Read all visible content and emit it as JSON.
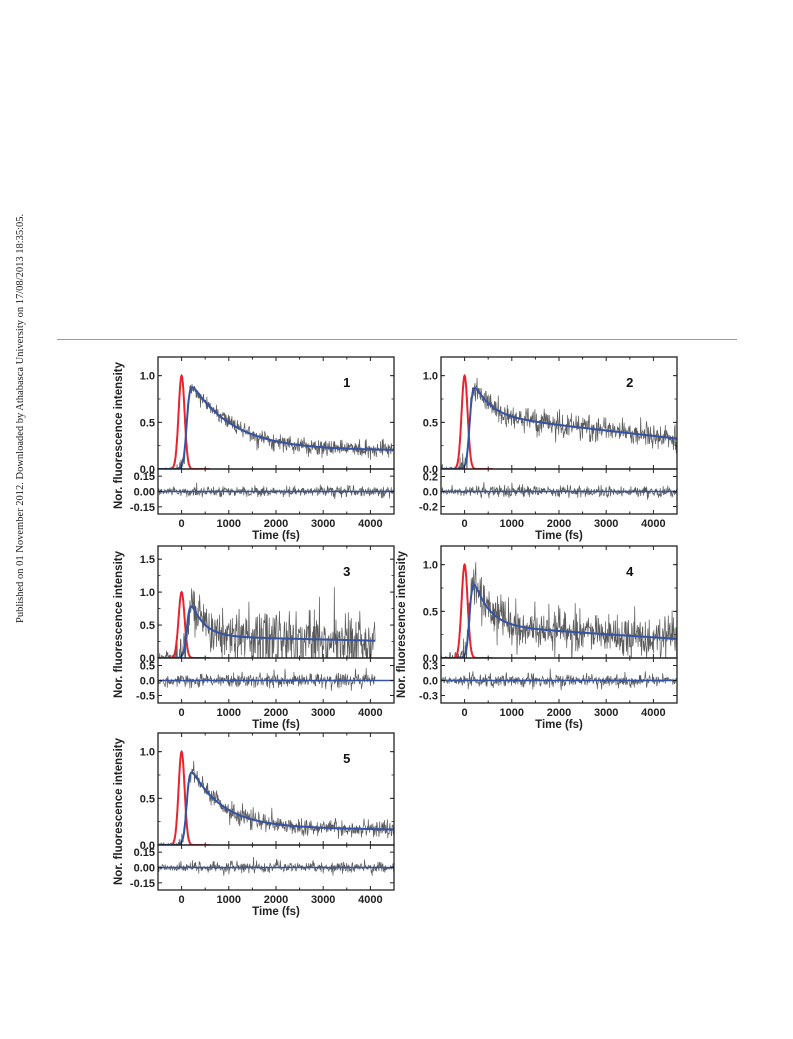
{
  "side_note": "Published on 01 November 2012. Downloaded by Athabasca University on 17/08/2013 18:35:05.",
  "colors": {
    "irf": "#e3262e",
    "fit": "#3553a6",
    "data": "#5a5a5a",
    "axis": "#222222"
  },
  "chart_data": [
    {
      "type": "line",
      "panel_label": "1",
      "xlabel": "Time (fs)",
      "ylabel": "Nor. fluorescence intensity",
      "xlim": [
        -500,
        4500
      ],
      "xticks": [
        0,
        1000,
        2000,
        3000,
        4000
      ],
      "ylim": [
        0,
        1.2
      ],
      "yticks": [
        0.0,
        0.5,
        1.0
      ],
      "ytick_labels": [
        "0.0",
        "0.5",
        "1.0"
      ],
      "residual_ylim": [
        -0.22,
        0.22
      ],
      "residual_ticks": [
        0.15,
        0.0,
        -0.15
      ],
      "residual_tick_labels": [
        "0.15",
        "0.00",
        "-0.15"
      ],
      "irf": {
        "center": 0,
        "fwhm": 150
      },
      "fit": {
        "rise_center": 110,
        "rise_width": 80,
        "tau": 900,
        "amplitude": 0.8,
        "offset": 0.2
      },
      "data_end": 4500,
      "noise": 0.05,
      "residual_noise": 0.05,
      "series": [
        {
          "name": "",
          "color": "#e3262e"
        },
        {
          "name": "",
          "color": "#3553a6"
        }
      ]
    },
    {
      "type": "line",
      "panel_label": "2",
      "xlabel": "Time (fs)",
      "ylabel": "",
      "xlim": [
        -500,
        4500
      ],
      "xticks": [
        0,
        1000,
        2000,
        3000,
        4000
      ],
      "ylim": [
        0,
        1.2
      ],
      "yticks": [
        0.0,
        0.5,
        1.0
      ],
      "ytick_labels": [
        "0.0",
        "0.5",
        "1.0"
      ],
      "residual_ylim": [
        -0.3,
        0.3
      ],
      "residual_ticks": [
        0.2,
        0.0,
        -0.2
      ],
      "residual_tick_labels": [
        "0.2",
        "0.0",
        "-0.2"
      ],
      "irf": {
        "center": 0,
        "fwhm": 150
      },
      "fit": {
        "rise_center": 110,
        "rise_width": 80,
        "tau": 350,
        "amplitude": 0.45,
        "offset": 0.58,
        "slope": -5.8e-05
      },
      "data_end": 4500,
      "noise": 0.07,
      "residual_noise": 0.07,
      "series": [
        {
          "name": "",
          "color": "#e3262e"
        },
        {
          "name": "",
          "color": "#3553a6"
        }
      ]
    },
    {
      "type": "line",
      "panel_label": "3",
      "xlabel": "Time (fs)",
      "ylabel": "Nor. fluorescence intensity",
      "xlim": [
        -500,
        4500
      ],
      "xticks": [
        0,
        1000,
        2000,
        3000,
        4000
      ],
      "ylim": [
        0,
        1.7
      ],
      "yticks": [
        0.0,
        0.5,
        1.0,
        1.5
      ],
      "ytick_labels": [
        "0.0",
        "0.5",
        "1.0",
        "1.5"
      ],
      "residual_ylim": [
        -0.75,
        0.75
      ],
      "residual_ticks": [
        0.5,
        0.0,
        -0.5
      ],
      "residual_tick_labels": [
        "0.5",
        "0.0",
        "-0.5"
      ],
      "irf": {
        "center": 0,
        "fwhm": 150
      },
      "fit": {
        "rise_center": 120,
        "rise_width": 80,
        "tau": 280,
        "amplitude": 0.7,
        "offset": 0.33,
        "slope": -1.7e-05
      },
      "data_end": 4100,
      "noise": 0.22,
      "residual_noise": 0.22,
      "series": [
        {
          "name": "",
          "color": "#e3262e"
        },
        {
          "name": "",
          "color": "#3553a6"
        }
      ]
    },
    {
      "type": "line",
      "panel_label": "4",
      "xlabel": "Time (fs)",
      "ylabel": "Nor. fluorescence intensity",
      "xlim": [
        -500,
        4500
      ],
      "xticks": [
        0,
        1000,
        2000,
        3000,
        4000
      ],
      "ylim": [
        0,
        1.2
      ],
      "yticks": [
        0.0,
        0.5,
        1.0
      ],
      "ytick_labels": [
        "0.0",
        "0.5",
        "1.0"
      ],
      "residual_ylim": [
        -0.45,
        0.45
      ],
      "residual_ticks": [
        0.3,
        0.0,
        -0.3
      ],
      "residual_tick_labels": [
        "0.3",
        "0.0",
        "-0.3"
      ],
      "irf": {
        "center": 0,
        "fwhm": 150
      },
      "fit": {
        "rise_center": 110,
        "rise_width": 80,
        "tau": 320,
        "amplitude": 0.65,
        "offset": 0.35,
        "slope": -3.3e-05
      },
      "data_end": 4500,
      "noise": 0.12,
      "residual_noise": 0.12,
      "series": [
        {
          "name": "",
          "color": "#e3262e"
        },
        {
          "name": "",
          "color": "#3553a6"
        }
      ]
    },
    {
      "type": "line",
      "panel_label": "5",
      "xlabel": "Time (fs)",
      "ylabel": "Nor. fluorescence intensity",
      "xlim": [
        -500,
        4500
      ],
      "xticks": [
        0,
        1000,
        2000,
        3000,
        4000
      ],
      "ylim": [
        0,
        1.2
      ],
      "yticks": [
        0.0,
        0.5,
        1.0
      ],
      "ytick_labels": [
        "0.0",
        "0.5",
        "1.0"
      ],
      "residual_ylim": [
        -0.22,
        0.22
      ],
      "residual_ticks": [
        0.15,
        0.0,
        -0.15
      ],
      "residual_tick_labels": [
        "0.15",
        "0.00",
        "-0.15"
      ],
      "irf": {
        "center": 0,
        "fwhm": 150
      },
      "fit": {
        "rise_center": 110,
        "rise_width": 80,
        "tau": 650,
        "amplitude": 0.72,
        "offset": 0.2,
        "slope": -8e-06
      },
      "data_end": 4500,
      "noise": 0.05,
      "residual_noise": 0.05,
      "series": [
        {
          "name": "",
          "color": "#e3262e"
        },
        {
          "name": "",
          "color": "#3553a6"
        }
      ]
    }
  ]
}
